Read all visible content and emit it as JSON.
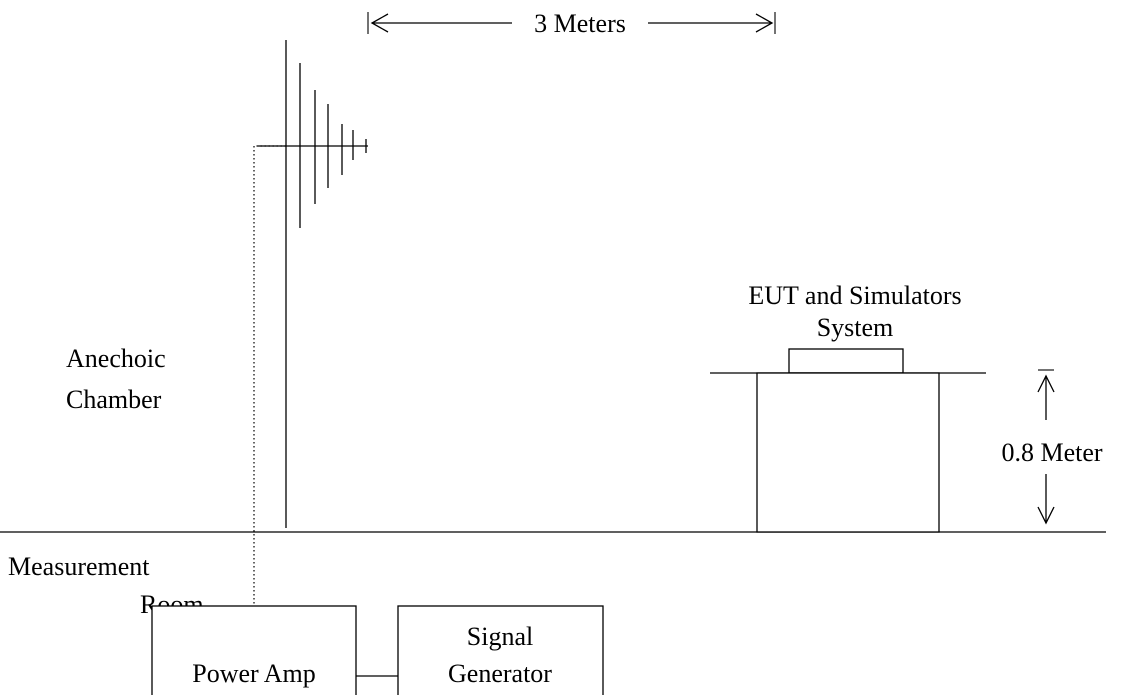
{
  "labels": {
    "distance": "3 Meters",
    "eut_line1": "EUT and Simulators",
    "eut_line2": "System",
    "chamber_line1": "Anechoic",
    "chamber_line2": "Chamber",
    "height": "0.8 Meter",
    "room_line1": "Measurement",
    "room_line2": "Room",
    "power_amp": "Power Amp",
    "signal_line1": "Signal",
    "signal_line2": "Generator"
  }
}
